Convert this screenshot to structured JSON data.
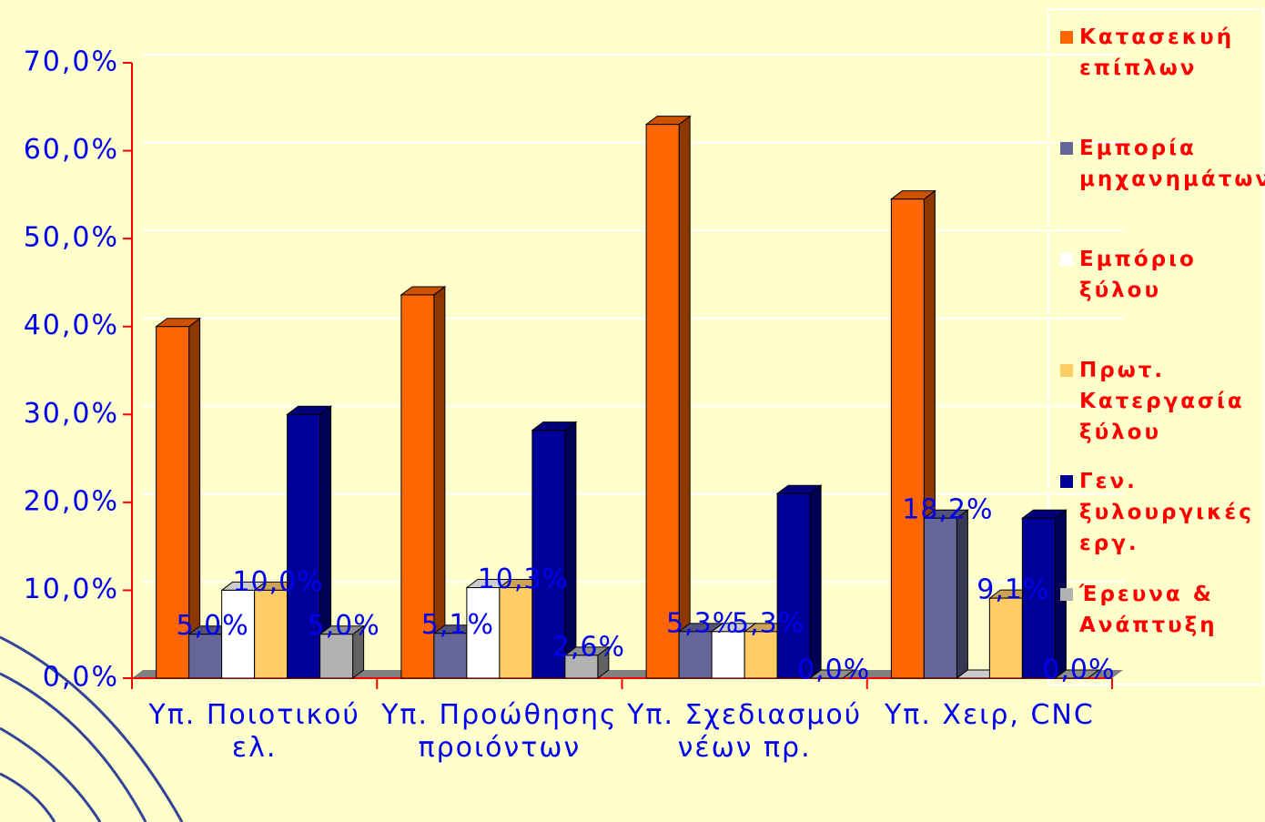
{
  "chart_data": {
    "type": "bar3d",
    "categories": [
      "Υπ. Ποιοτικού ελ.",
      "Υπ. Προώθησης προιόντων",
      "Υπ. Σχεδιασμού νέων πρ.",
      "Υπ. Χειρ, CNC"
    ],
    "series": [
      {
        "name": "Κατασεκυή επίπλων",
        "color": "#ff6600",
        "values": [
          40.0,
          43.6,
          63.0,
          54.5
        ]
      },
      {
        "name": "Εμπορία μηχανημάτων",
        "color": "#666699",
        "values": [
          5.0,
          5.1,
          5.3,
          18.2
        ],
        "value_labels": [
          "5,0%",
          "5,1%",
          "5,3%",
          "18,2%"
        ]
      },
      {
        "name": "Εμπόριο ξύλου",
        "color": "#ffffff",
        "values": [
          10.0,
          10.3,
          5.3,
          0.0
        ]
      },
      {
        "name": "Πρωτ. Κατεργασία ξύλου",
        "color": "#ffcc66",
        "values": [
          10.0,
          10.3,
          5.3,
          9.1
        ],
        "value_labels": [
          "10,0%",
          "10,3%",
          "5,3%",
          "9,1%"
        ]
      },
      {
        "name": "Γεν. ξυλουργικές εργ.",
        "color": "#000099",
        "values": [
          30.0,
          28.2,
          21.0,
          18.2
        ]
      },
      {
        "name": "Έρευνα & Ανάπτυξη",
        "color": "#b2b2b2",
        "values": [
          5.0,
          2.6,
          0.0,
          0.0
        ],
        "value_labels": [
          "5,0%",
          "2,6%",
          "0,0%",
          "0,0%"
        ]
      }
    ],
    "ylim": [
      0,
      70
    ],
    "yticks": [
      {
        "value": 0,
        "label": "0,0%"
      },
      {
        "value": 10,
        "label": "10,0%"
      },
      {
        "value": 20,
        "label": "20,0%"
      },
      {
        "value": 30,
        "label": "30,0%"
      },
      {
        "value": 40,
        "label": "40,0%"
      },
      {
        "value": 50,
        "label": "50,0%"
      },
      {
        "value": 60,
        "label": "60,0%"
      },
      {
        "value": 70,
        "label": "70,0%"
      }
    ],
    "grid": true,
    "legend": "right"
  }
}
